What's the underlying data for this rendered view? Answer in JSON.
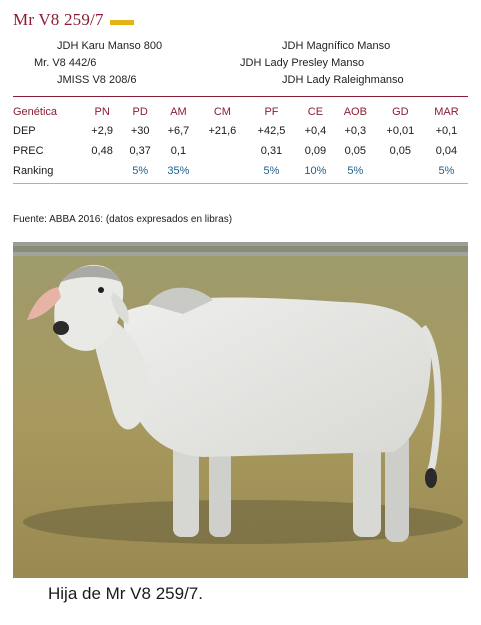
{
  "title": "Mr V8 259/7",
  "pedigree": {
    "sire": "Mr. V8 442/6",
    "sire_sire": "JDH Karu Manso 800",
    "sire_dam": "JMISS V8 208/6",
    "dam": "JDH Lady Presley Manso",
    "dam_sire": "JDH Magnífico Manso",
    "dam_dam": "JDH Lady Raleighmanso"
  },
  "epd_table": {
    "row_header": "Genética",
    "columns": [
      "PN",
      "PD",
      "AM",
      "CM",
      "PF",
      "CE",
      "AOB",
      "GD",
      "MAR"
    ],
    "rows": [
      {
        "label": "DEP",
        "values": [
          "+2,9",
          "+30",
          "+6,7",
          "+21,6",
          "+42,5",
          "+0,4",
          "+0,3",
          "+0,01",
          "+0,1"
        ]
      },
      {
        "label": "PREC",
        "values": [
          "0,48",
          "0,37",
          "0,1",
          "",
          "0,31",
          "0,09",
          "0,05",
          "0,05",
          "0,04"
        ]
      },
      {
        "label": "Ranking",
        "values": [
          "",
          "5%",
          "35%",
          "",
          "5%",
          "10%",
          "5%",
          "",
          "5%"
        ]
      }
    ]
  },
  "source": "Fuente: ABBA 2016: (datos expresados en libras)",
  "caption": "Hija de Mr V8 259/7.",
  "colors": {
    "accent": "#8a1d35",
    "gold": "#e6b219",
    "ranking": "#1f5f8b"
  }
}
